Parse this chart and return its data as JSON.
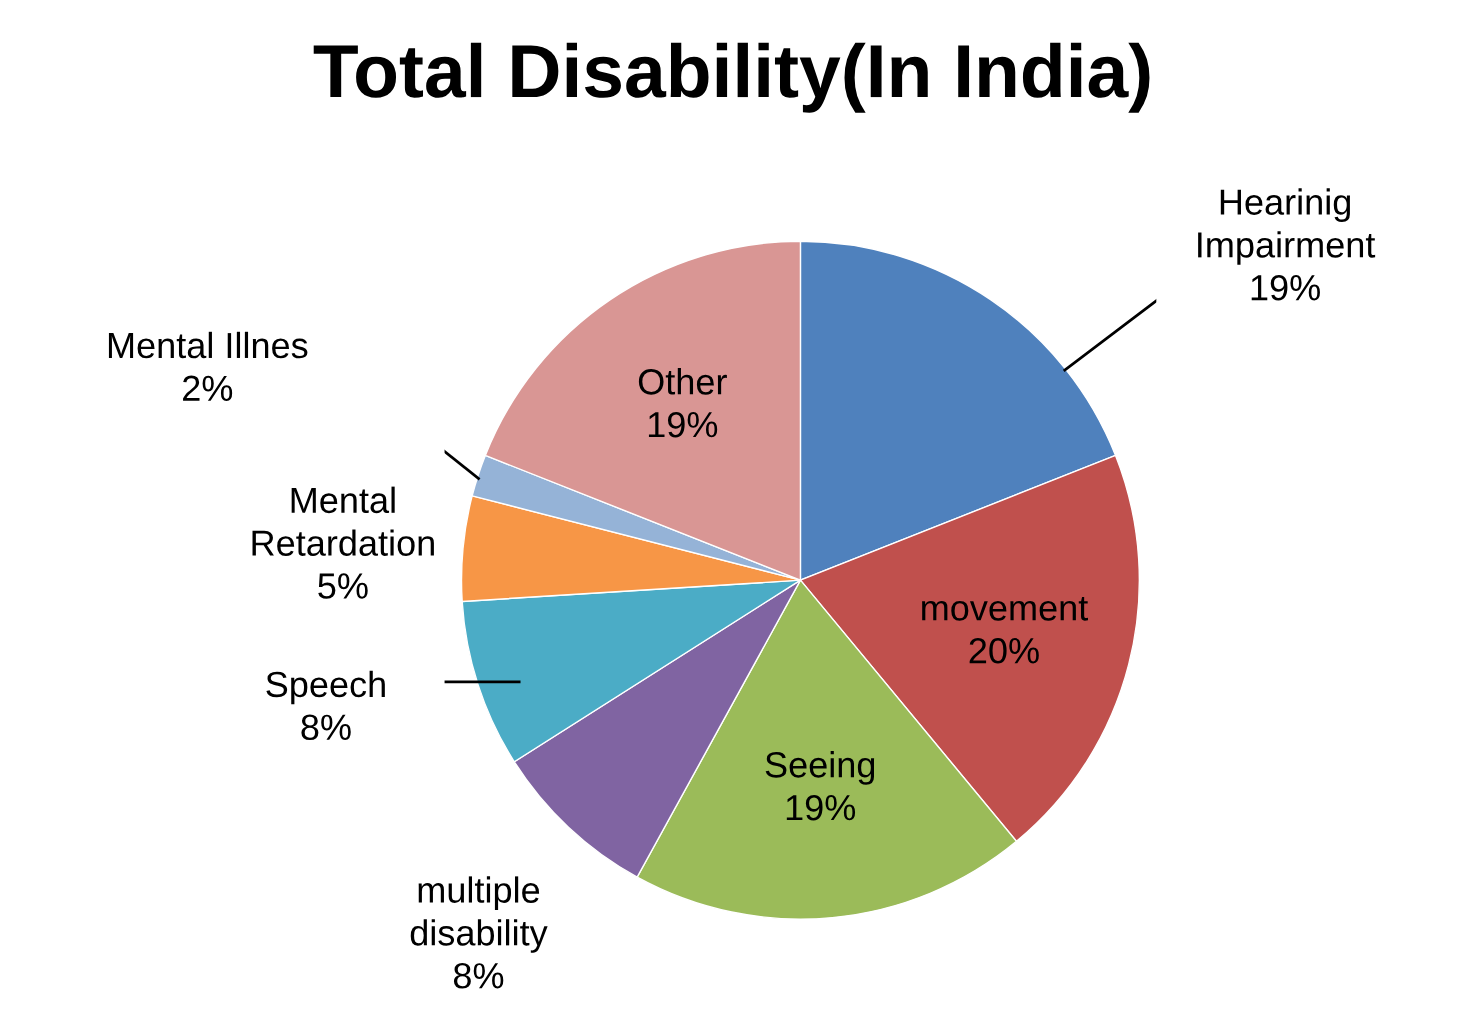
{
  "chart_data": {
    "type": "pie",
    "title": "Total Disability(In India)",
    "categories": [
      "Hearinig Impairment",
      "movement",
      "Seeing",
      "multiple disability",
      "Speech",
      "Mental Retardation",
      "Mental Illnes",
      "Other"
    ],
    "values": [
      19,
      20,
      19,
      8,
      8,
      5,
      2,
      19
    ],
    "value_labels": [
      "19%",
      "20%",
      "19%",
      "8%",
      "8%",
      "5%",
      "2%",
      "19%"
    ],
    "colors": [
      "#4f81bd",
      "#c0504d",
      "#9bbb59",
      "#8064a2",
      "#4bacc6",
      "#f79646",
      "#95b3d7",
      "#d99694"
    ],
    "legend": false
  }
}
